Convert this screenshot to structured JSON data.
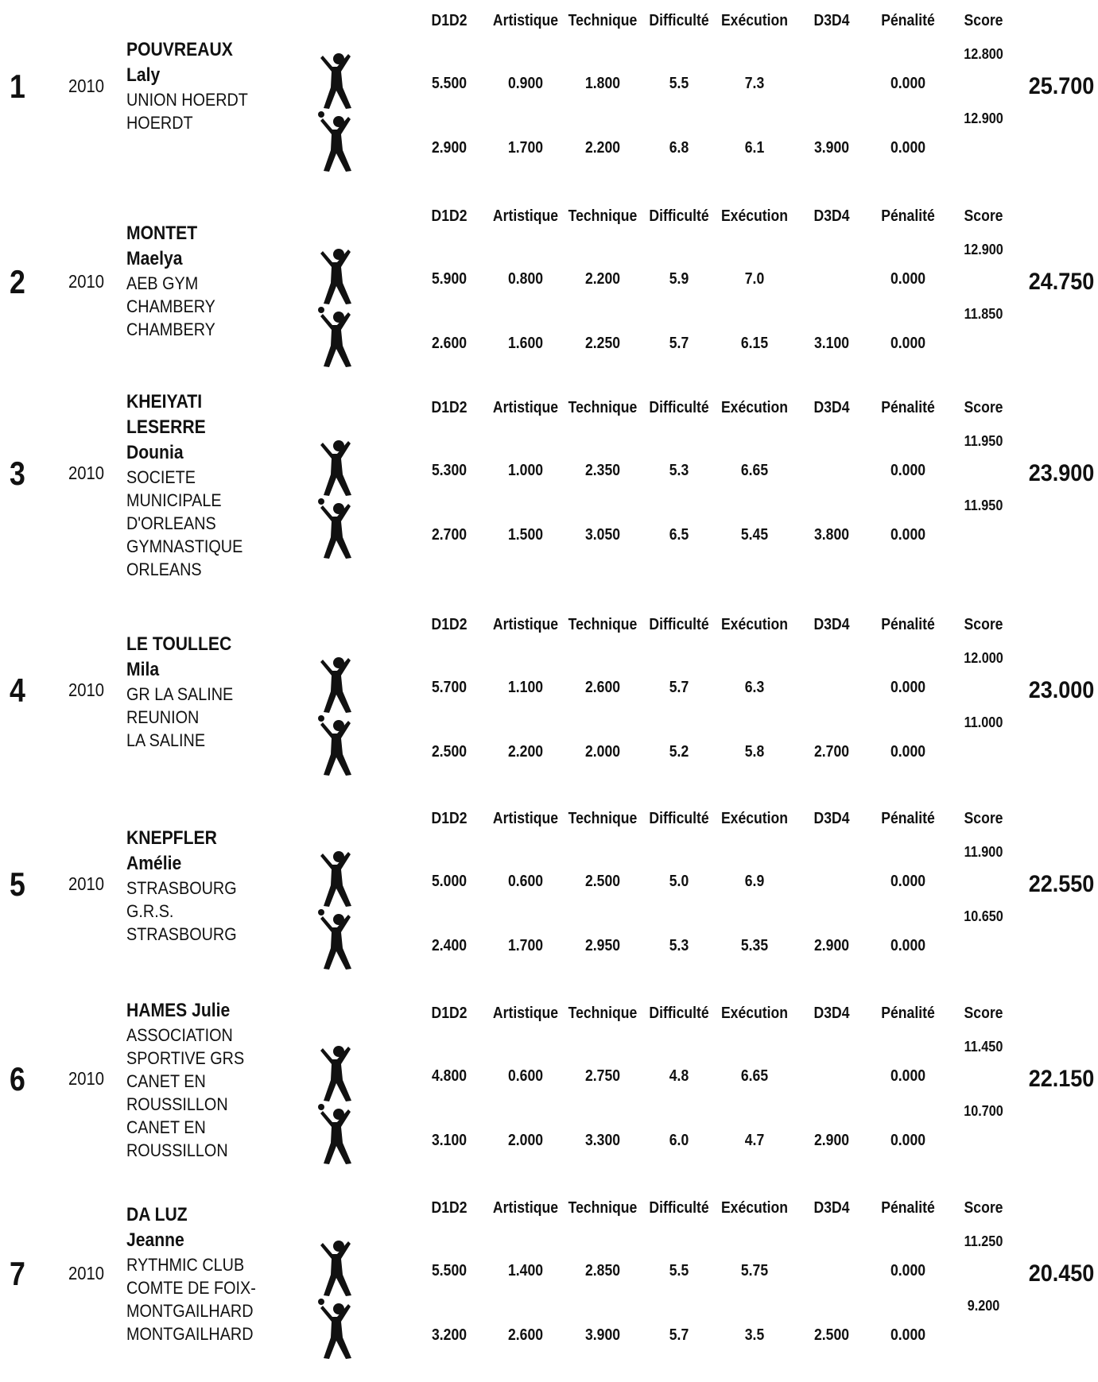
{
  "columns": [
    "D1D2",
    "Artistique",
    "Technique",
    "Difficulté",
    "Exécution",
    "D3D4",
    "Pénalité",
    "Score"
  ],
  "entries": [
    {
      "rank": "1",
      "year": "2010",
      "name_lines": [
        "POUVREAUX",
        "Laly"
      ],
      "club_lines": [
        "UNION HOERDT",
        "HOERDT"
      ],
      "total": "25.700",
      "routines": [
        {
          "d1d2": "5.500",
          "artistique": "0.900",
          "technique": "1.800",
          "difficulte": "5.5",
          "execution": "7.3",
          "d3d4": "",
          "penalite": "0.000",
          "score": "12.800",
          "icon": "gymnast-icon"
        },
        {
          "d1d2": "2.900",
          "artistique": "1.700",
          "technique": "2.200",
          "difficulte": "6.8",
          "execution": "6.1",
          "d3d4": "3.900",
          "penalite": "0.000",
          "score": "12.900",
          "icon": "gymnast-ball-icon"
        }
      ]
    },
    {
      "rank": "2",
      "year": "2010",
      "name_lines": [
        "MONTET",
        "Maelya"
      ],
      "club_lines": [
        "AEB GYM",
        "CHAMBERY",
        "CHAMBERY"
      ],
      "total": "24.750",
      "routines": [
        {
          "d1d2": "5.900",
          "artistique": "0.800",
          "technique": "2.200",
          "difficulte": "5.9",
          "execution": "7.0",
          "d3d4": "",
          "penalite": "0.000",
          "score": "12.900",
          "icon": "gymnast-icon"
        },
        {
          "d1d2": "2.600",
          "artistique": "1.600",
          "technique": "2.250",
          "difficulte": "5.7",
          "execution": "6.15",
          "d3d4": "3.100",
          "penalite": "0.000",
          "score": "11.850",
          "icon": "gymnast-ball-icon"
        }
      ]
    },
    {
      "rank": "3",
      "year": "2010",
      "name_lines": [
        "KHEIYATI",
        "LESERRE",
        "Dounia"
      ],
      "club_lines": [
        "SOCIETE",
        "MUNICIPALE",
        "D'ORLEANS",
        "GYMNASTIQUE",
        "ORLEANS"
      ],
      "total": "23.900",
      "routines": [
        {
          "d1d2": "5.300",
          "artistique": "1.000",
          "technique": "2.350",
          "difficulte": "5.3",
          "execution": "6.65",
          "d3d4": "",
          "penalite": "0.000",
          "score": "11.950",
          "icon": "gymnast-icon"
        },
        {
          "d1d2": "2.700",
          "artistique": "1.500",
          "technique": "3.050",
          "difficulte": "6.5",
          "execution": "5.45",
          "d3d4": "3.800",
          "penalite": "0.000",
          "score": "11.950",
          "icon": "gymnast-ball-icon"
        }
      ]
    },
    {
      "rank": "4",
      "year": "2010",
      "name_lines": [
        "LE TOULLEC",
        "Mila"
      ],
      "club_lines": [
        "GR LA SALINE",
        "REUNION",
        "LA SALINE"
      ],
      "total": "23.000",
      "routines": [
        {
          "d1d2": "5.700",
          "artistique": "1.100",
          "technique": "2.600",
          "difficulte": "5.7",
          "execution": "6.3",
          "d3d4": "",
          "penalite": "0.000",
          "score": "12.000",
          "icon": "gymnast-icon"
        },
        {
          "d1d2": "2.500",
          "artistique": "2.200",
          "technique": "2.000",
          "difficulte": "5.2",
          "execution": "5.8",
          "d3d4": "2.700",
          "penalite": "0.000",
          "score": "11.000",
          "icon": "gymnast-ball-icon"
        }
      ]
    },
    {
      "rank": "5",
      "year": "2010",
      "name_lines": [
        "KNEPFLER",
        "Amélie"
      ],
      "club_lines": [
        "STRASBOURG",
        "G.R.S.",
        "STRASBOURG"
      ],
      "total": "22.550",
      "routines": [
        {
          "d1d2": "5.000",
          "artistique": "0.600",
          "technique": "2.500",
          "difficulte": "5.0",
          "execution": "6.9",
          "d3d4": "",
          "penalite": "0.000",
          "score": "11.900",
          "icon": "gymnast-icon"
        },
        {
          "d1d2": "2.400",
          "artistique": "1.700",
          "technique": "2.950",
          "difficulte": "5.3",
          "execution": "5.35",
          "d3d4": "2.900",
          "penalite": "0.000",
          "score": "10.650",
          "icon": "gymnast-ball-icon"
        }
      ]
    },
    {
      "rank": "6",
      "year": "2010",
      "name_lines": [
        "HAMES Julie"
      ],
      "club_lines": [
        "ASSOCIATION",
        "SPORTIVE GRS",
        "CANET EN",
        "ROUSSILLON",
        "CANET EN",
        "ROUSSILLON"
      ],
      "total": "22.150",
      "routines": [
        {
          "d1d2": "4.800",
          "artistique": "0.600",
          "technique": "2.750",
          "difficulte": "4.8",
          "execution": "6.65",
          "d3d4": "",
          "penalite": "0.000",
          "score": "11.450",
          "icon": "gymnast-icon"
        },
        {
          "d1d2": "3.100",
          "artistique": "2.000",
          "technique": "3.300",
          "difficulte": "6.0",
          "execution": "4.7",
          "d3d4": "2.900",
          "penalite": "0.000",
          "score": "10.700",
          "icon": "gymnast-ball-icon"
        }
      ]
    },
    {
      "rank": "7",
      "year": "2010",
      "name_lines": [
        "DA LUZ",
        "Jeanne"
      ],
      "club_lines": [
        "RYTHMIC CLUB",
        "COMTE DE FOIX-",
        "MONTGAILHARD",
        "MONTGAILHARD"
      ],
      "total": "20.450",
      "routines": [
        {
          "d1d2": "5.500",
          "artistique": "1.400",
          "technique": "2.850",
          "difficulte": "5.5",
          "execution": "5.75",
          "d3d4": "",
          "penalite": "0.000",
          "score": "11.250",
          "icon": "gymnast-icon"
        },
        {
          "d1d2": "3.200",
          "artistique": "2.600",
          "technique": "3.900",
          "difficulte": "5.7",
          "execution": "3.5",
          "d3d4": "2.500",
          "penalite": "0.000",
          "score": "9.200",
          "icon": "gymnast-ball-icon"
        }
      ]
    }
  ]
}
